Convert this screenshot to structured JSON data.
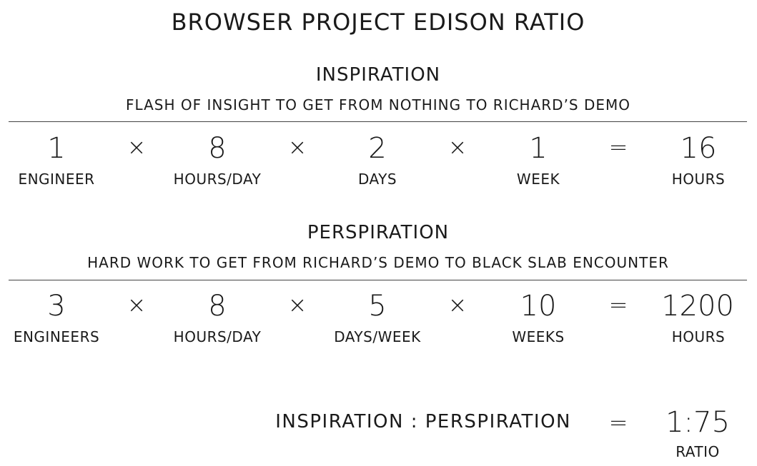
{
  "title": "BROWSER PROJECT EDISON RATIO",
  "inspiration": {
    "heading": "INSPIRATION",
    "subtitle": "FLASH OF INSIGHT TO GET FROM NOTHING TO RICHARD’S DEMO",
    "factors": [
      {
        "value": "1",
        "unit": "ENGINEER"
      },
      {
        "value": "8",
        "unit": "HOURS/DAY"
      },
      {
        "value": "2",
        "unit": "DAYS"
      },
      {
        "value": "1",
        "unit": "WEEK"
      }
    ],
    "ops": [
      "×",
      "×",
      "×",
      "="
    ],
    "result": {
      "value": "16",
      "unit": "HOURS"
    }
  },
  "perspiration": {
    "heading": "PERSPIRATION",
    "subtitle": "HARD WORK TO GET FROM RICHARD’S DEMO TO BLACK SLAB ENCOUNTER",
    "factors": [
      {
        "value": "3",
        "unit": "ENGINEERS"
      },
      {
        "value": "8",
        "unit": "HOURS/DAY"
      },
      {
        "value": "5",
        "unit": "DAYS/WEEK"
      },
      {
        "value": "10",
        "unit": "WEEKS"
      }
    ],
    "ops": [
      "×",
      "×",
      "×",
      "="
    ],
    "result": {
      "value": "1200",
      "unit": "HOURS"
    }
  },
  "ratio": {
    "label": "INSPIRATION : PERSPIRATION",
    "op": "=",
    "value": "1:75",
    "unit": "RATIO"
  }
}
